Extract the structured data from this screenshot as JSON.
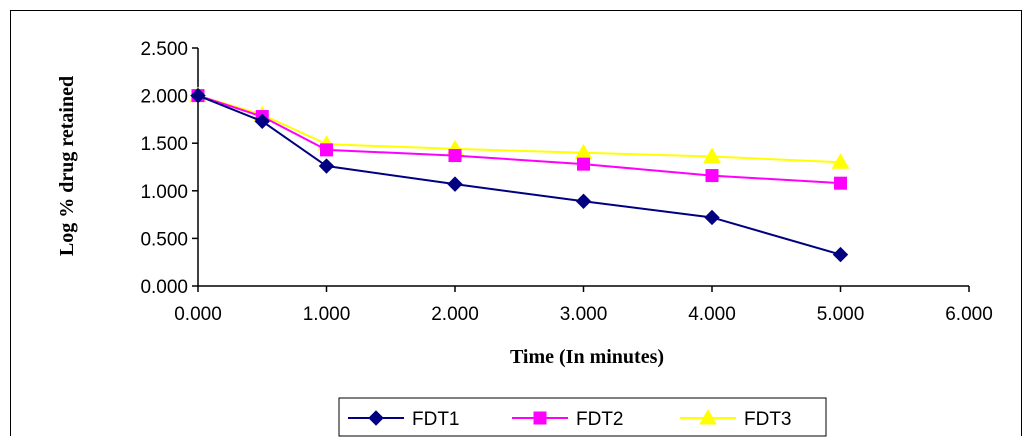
{
  "chart_data": {
    "type": "line",
    "xlabel": "Time (In minutes)",
    "ylabel": "Log % drug retained",
    "xlim": [
      0,
      6
    ],
    "ylim": [
      0,
      2.5
    ],
    "x_ticks": [
      "0.000",
      "1.000",
      "2.000",
      "3.000",
      "4.000",
      "5.000",
      "6.000"
    ],
    "y_ticks": [
      "0.000",
      "0.500",
      "1.000",
      "1.500",
      "2.000",
      "2.500"
    ],
    "grid": false,
    "legend_position": "bottom",
    "series": [
      {
        "name": "FDT1",
        "color": "#000080",
        "marker": "diamond",
        "x": [
          0,
          0.5,
          1,
          2,
          3,
          4,
          5
        ],
        "y": [
          2.0,
          1.73,
          1.26,
          1.07,
          0.89,
          0.72,
          0.33
        ]
      },
      {
        "name": "FDT2",
        "color": "#ff00ff",
        "marker": "square",
        "x": [
          0,
          0.5,
          1,
          2,
          3,
          4,
          5
        ],
        "y": [
          2.0,
          1.78,
          1.43,
          1.37,
          1.28,
          1.16,
          1.08
        ]
      },
      {
        "name": "FDT3",
        "color": "#ffff00",
        "marker": "triangle",
        "x": [
          0,
          0.5,
          1,
          2,
          3,
          4,
          5
        ],
        "y": [
          2.0,
          1.8,
          1.49,
          1.44,
          1.4,
          1.36,
          1.3
        ]
      }
    ]
  }
}
